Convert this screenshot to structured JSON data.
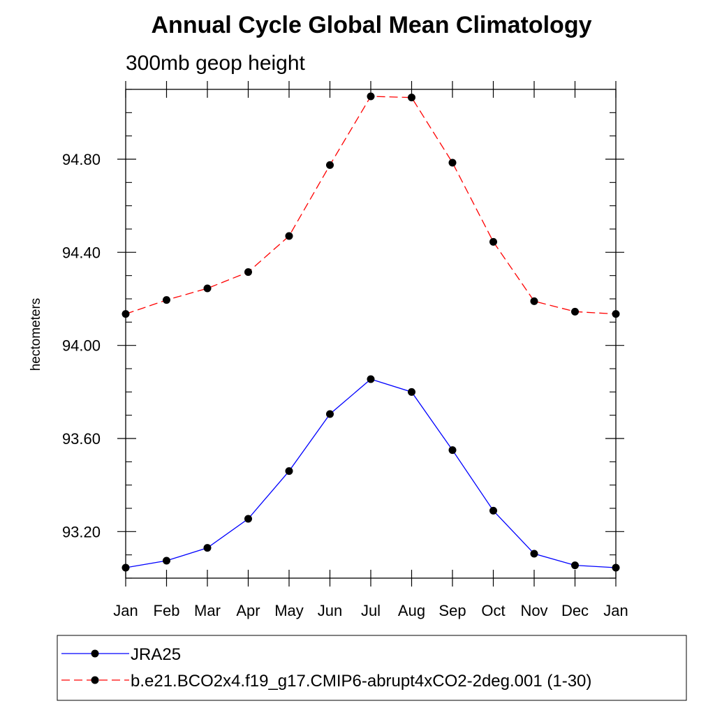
{
  "chart_data": {
    "type": "line",
    "title": "Annual Cycle Global Mean Climatology",
    "subtitle": "300mb geop height",
    "xlabel": "",
    "ylabel": "hectometers",
    "categories": [
      "Jan",
      "Feb",
      "Mar",
      "Apr",
      "May",
      "Jun",
      "Jul",
      "Aug",
      "Sep",
      "Oct",
      "Nov",
      "Dec",
      "Jan"
    ],
    "ylim": [
      93.0,
      95.1
    ],
    "yticks": [
      93.2,
      93.6,
      94.0,
      94.4,
      94.8
    ],
    "ytick_labels": [
      "93.20",
      "93.60",
      "94.00",
      "94.40",
      "94.80"
    ],
    "minor_step": 0.1,
    "grid": false,
    "legend_position": "bottom",
    "series": [
      {
        "name": "JRA25",
        "color": "#0000ff",
        "dash": "solid",
        "marker": "dot",
        "values": [
          93.045,
          93.075,
          93.13,
          93.255,
          93.46,
          93.705,
          93.855,
          93.8,
          93.55,
          93.29,
          93.105,
          93.055,
          93.045
        ]
      },
      {
        "name": "b.e21.BCO2x4.f19_g17.CMIP6-abrupt4xCO2-2deg.001 (1-30)",
        "color": "#ff0000",
        "dash": "dashed",
        "marker": "dot",
        "values": [
          94.135,
          94.195,
          94.245,
          94.315,
          94.47,
          94.775,
          95.07,
          95.065,
          94.785,
          94.445,
          94.19,
          94.145,
          94.135
        ]
      }
    ]
  }
}
